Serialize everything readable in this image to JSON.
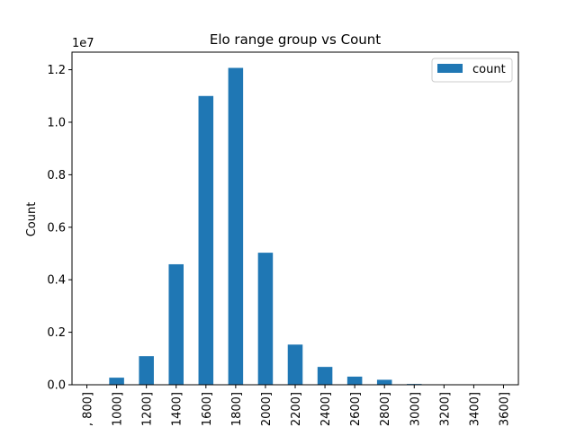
{
  "chart_data": {
    "type": "bar",
    "title": "Elo range group vs Count",
    "xlabel": "",
    "ylabel": "Count",
    "y_offset_label": "1e7",
    "categories": [
      ", 800]",
      "1000]",
      "1200]",
      "1400]",
      "1600]",
      "1800]",
      "2000]",
      "2200]",
      "2400]",
      "2600]",
      "2800]",
      "3000]",
      "3200]",
      "3400]",
      "3600]"
    ],
    "series": [
      {
        "name": "count",
        "color": "#1f77b4",
        "values": [
          0,
          270000,
          1090000,
          4590000,
          11000000,
          12070000,
          5030000,
          1530000,
          680000,
          310000,
          190000,
          30000,
          0,
          0,
          0
        ]
      }
    ],
    "yticks": [
      "0.0",
      "0.2",
      "0.4",
      "0.6",
      "0.8",
      "1.0",
      "1.2"
    ],
    "ylim": [
      0,
      12670000
    ],
    "legend_position": "top-right",
    "grid": false
  }
}
